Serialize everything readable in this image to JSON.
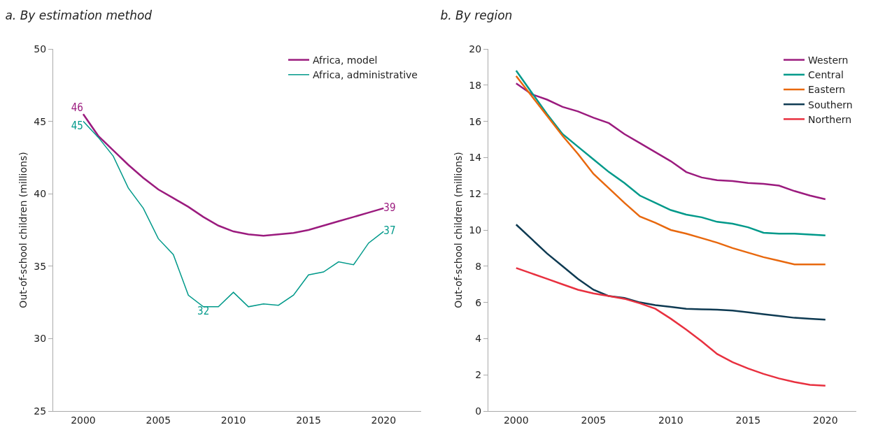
{
  "chart_data": [
    {
      "type": "line",
      "title": "a. By estimation method",
      "ylabel": "Out-of-school children (millions)",
      "x": [
        2000,
        2001,
        2002,
        2003,
        2004,
        2005,
        2006,
        2007,
        2008,
        2009,
        2010,
        2011,
        2012,
        2013,
        2014,
        2015,
        2016,
        2017,
        2018,
        2019,
        2020
      ],
      "xlim": [
        1998,
        2022.5
      ],
      "xticks": [
        2000,
        2005,
        2010,
        2015,
        2020
      ],
      "ylim": [
        25,
        50
      ],
      "yticks": [
        25,
        30,
        35,
        40,
        45,
        50
      ],
      "grid": false,
      "legend": "top right",
      "marker": "none",
      "line_style": "solid",
      "series": [
        {
          "name": "Africa, model",
          "color": "#9b1b7e",
          "values": [
            45.5,
            44.0,
            43.0,
            42.0,
            41.1,
            40.3,
            39.7,
            39.1,
            38.4,
            37.8,
            37.4,
            37.2,
            37.1,
            37.2,
            37.3,
            37.5,
            37.8,
            38.1,
            38.4,
            38.7,
            39.0
          ],
          "value_labels": [
            "46",
            null,
            null,
            null,
            null,
            null,
            null,
            null,
            null,
            null,
            null,
            null,
            null,
            null,
            null,
            null,
            null,
            null,
            null,
            null,
            "39"
          ]
        },
        {
          "name": "Africa, administrative",
          "color": "#00998a",
          "values": [
            45.0,
            43.9,
            42.6,
            40.4,
            39.0,
            36.9,
            35.8,
            33.0,
            32.2,
            32.2,
            33.2,
            32.2,
            32.4,
            32.3,
            33.0,
            34.4,
            34.6,
            35.3,
            35.1,
            36.6,
            37.4
          ],
          "value_labels": [
            "45",
            null,
            null,
            null,
            null,
            null,
            null,
            null,
            "32",
            null,
            null,
            null,
            null,
            null,
            null,
            null,
            null,
            null,
            null,
            null,
            "37"
          ]
        }
      ]
    },
    {
      "type": "line",
      "title": "b. By region",
      "ylabel": "Out-of-school children (millions)",
      "x": [
        2000,
        2001,
        2002,
        2003,
        2004,
        2005,
        2006,
        2007,
        2008,
        2009,
        2010,
        2011,
        2012,
        2013,
        2014,
        2015,
        2016,
        2017,
        2018,
        2019,
        2020
      ],
      "xlim": [
        1998.2,
        2022
      ],
      "xticks": [
        2000,
        2005,
        2010,
        2015,
        2020
      ],
      "ylim": [
        0,
        20
      ],
      "yticks": [
        0,
        2,
        4,
        6,
        8,
        10,
        12,
        14,
        16,
        18,
        20
      ],
      "grid": false,
      "legend": "top right",
      "marker": "none",
      "line_style": "solid",
      "series": [
        {
          "name": "Western",
          "color": "#9b1b7e",
          "values": [
            18.1,
            17.5,
            17.2,
            16.8,
            16.55,
            16.2,
            15.9,
            15.3,
            14.8,
            14.3,
            13.8,
            13.2,
            12.9,
            12.75,
            12.7,
            12.6,
            12.55,
            12.45,
            12.15,
            11.9,
            11.7
          ]
        },
        {
          "name": "Central",
          "color": "#00998a",
          "values": [
            18.8,
            17.6,
            16.4,
            15.3,
            14.6,
            13.9,
            13.2,
            12.6,
            11.9,
            11.5,
            11.1,
            10.85,
            10.7,
            10.45,
            10.35,
            10.15,
            9.85,
            9.8,
            9.8,
            9.75,
            9.7
          ]
        },
        {
          "name": "Eastern",
          "color": "#e8680e",
          "values": [
            18.5,
            17.4,
            16.3,
            15.2,
            14.2,
            13.1,
            12.3,
            11.5,
            10.75,
            10.4,
            10.0,
            9.8,
            9.55,
            9.3,
            9.0,
            8.75,
            8.5,
            8.3,
            8.1,
            8.1,
            8.1
          ]
        },
        {
          "name": "Southern",
          "color": "#0e3a52",
          "values": [
            10.3,
            9.5,
            8.7,
            8.0,
            7.3,
            6.7,
            6.35,
            6.25,
            6.0,
            5.85,
            5.75,
            5.65,
            5.62,
            5.6,
            5.55,
            5.45,
            5.35,
            5.25,
            5.15,
            5.1,
            5.05
          ]
        },
        {
          "name": "Northern",
          "color": "#e8303f",
          "values": [
            7.9,
            7.6,
            7.3,
            7.0,
            6.7,
            6.5,
            6.35,
            6.2,
            5.95,
            5.65,
            5.1,
            4.5,
            3.85,
            3.15,
            2.7,
            2.35,
            2.05,
            1.8,
            1.6,
            1.45,
            1.4
          ]
        }
      ]
    }
  ]
}
